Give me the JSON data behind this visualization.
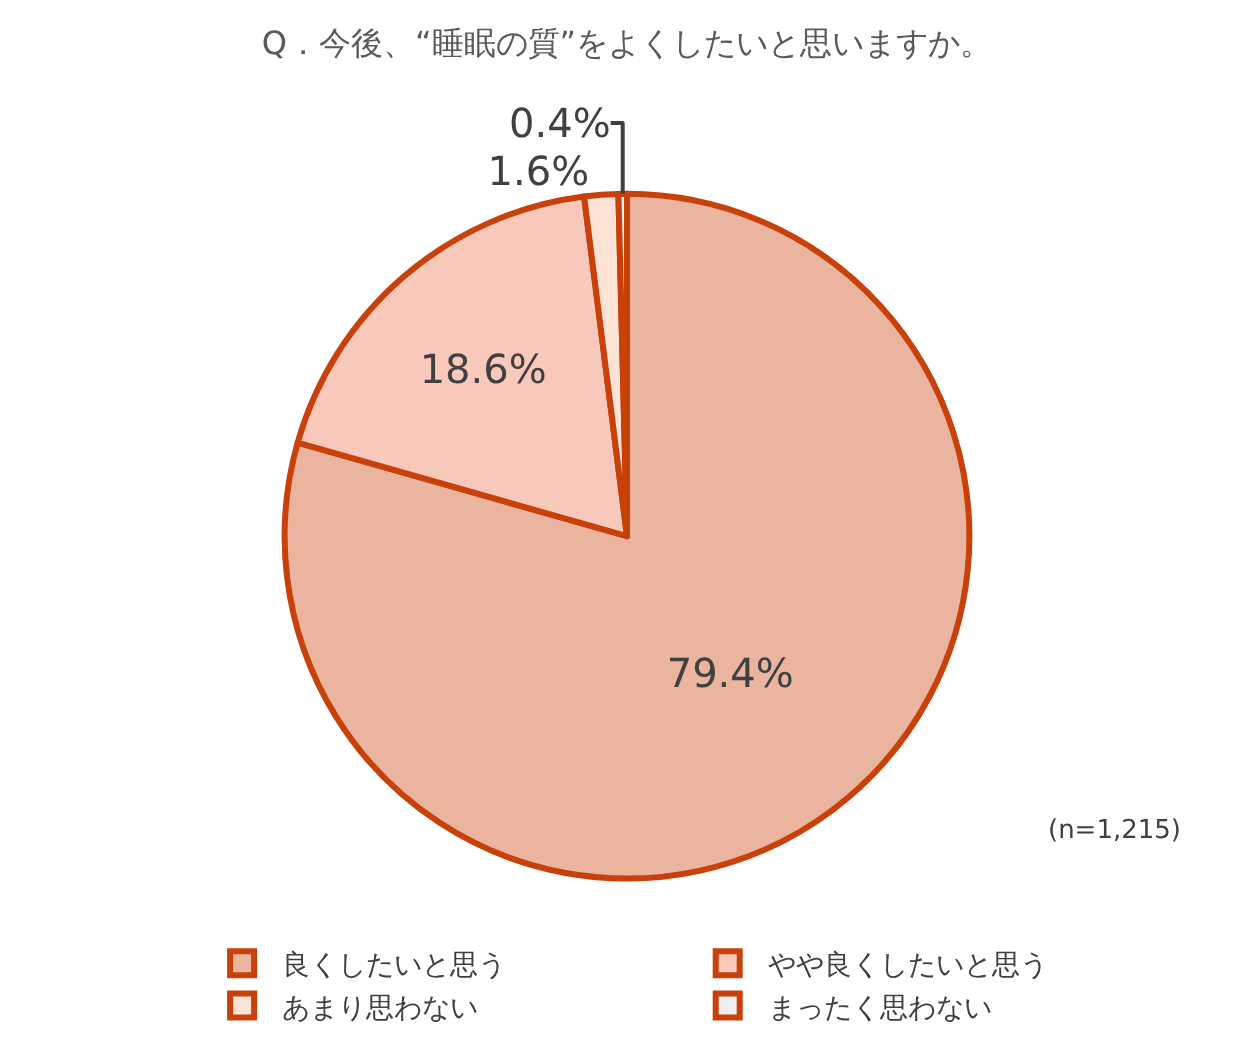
{
  "chart_data": {
    "type": "pie",
    "title": "Q．今後、“睡眠の質”をよくしたいと思いますか。",
    "categories": [
      "良くしたいと思う",
      "やや良くしたいと思う",
      "あまり思わない",
      "まったく思わない"
    ],
    "values": [
      79.4,
      18.6,
      1.6,
      0.4
    ],
    "colors": [
      "#eab49f",
      "#f8c9bb",
      "#fde3d6",
      "#efefef"
    ],
    "value_labels": [
      "79.4%",
      "18.6%",
      "1.6%",
      "0.4%"
    ],
    "annotations": [
      "(n=1,215)"
    ],
    "legend": "bottom"
  }
}
